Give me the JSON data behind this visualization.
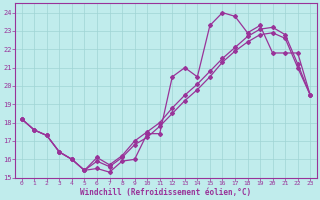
{
  "xlabel": "Windchill (Refroidissement éolien,°C)",
  "background_color": "#c0ecec",
  "grid_color": "#a0d4d4",
  "line_color": "#993399",
  "spine_color": "#993399",
  "xlim_min": -0.5,
  "xlim_max": 23.5,
  "ylim_min": 15,
  "ylim_max": 24.5,
  "yticks": [
    15,
    16,
    17,
    18,
    19,
    20,
    21,
    22,
    23,
    24
  ],
  "xticks": [
    0,
    1,
    2,
    3,
    4,
    5,
    6,
    7,
    8,
    9,
    10,
    11,
    12,
    13,
    14,
    15,
    16,
    17,
    18,
    19,
    20,
    21,
    22,
    23
  ],
  "series1_x": [
    0,
    1,
    2,
    3,
    4,
    5,
    6,
    7,
    8,
    9,
    10,
    11,
    12,
    13,
    14,
    15,
    16,
    17,
    18,
    19,
    20,
    21,
    22,
    23
  ],
  "series1_y": [
    18.2,
    17.6,
    17.3,
    16.4,
    16.0,
    15.4,
    15.5,
    15.3,
    15.9,
    16.0,
    17.4,
    17.4,
    20.5,
    21.0,
    20.5,
    23.3,
    24.0,
    23.8,
    22.9,
    23.3,
    21.8,
    21.8,
    21.8,
    19.5
  ],
  "series2_x": [
    0,
    1,
    2,
    3,
    4,
    5,
    6,
    7,
    8,
    9,
    10,
    11,
    12,
    13,
    14,
    15,
    16,
    17,
    18,
    19,
    20,
    21,
    22,
    23
  ],
  "series2_y": [
    18.2,
    17.6,
    17.3,
    16.4,
    16.0,
    15.4,
    15.9,
    15.6,
    16.1,
    16.8,
    17.2,
    17.8,
    18.5,
    19.2,
    19.8,
    20.5,
    21.3,
    21.9,
    22.4,
    22.8,
    22.9,
    22.6,
    21.0,
    19.5
  ],
  "series3_x": [
    0,
    1,
    2,
    3,
    4,
    5,
    6,
    7,
    8,
    9,
    10,
    11,
    12,
    13,
    14,
    15,
    16,
    17,
    18,
    19,
    20,
    21,
    22,
    23
  ],
  "series3_y": [
    18.2,
    17.6,
    17.3,
    16.4,
    16.0,
    15.4,
    16.1,
    15.7,
    16.2,
    17.0,
    17.5,
    18.0,
    18.8,
    19.5,
    20.1,
    20.8,
    21.5,
    22.1,
    22.7,
    23.1,
    23.2,
    22.8,
    21.2,
    19.5
  ]
}
